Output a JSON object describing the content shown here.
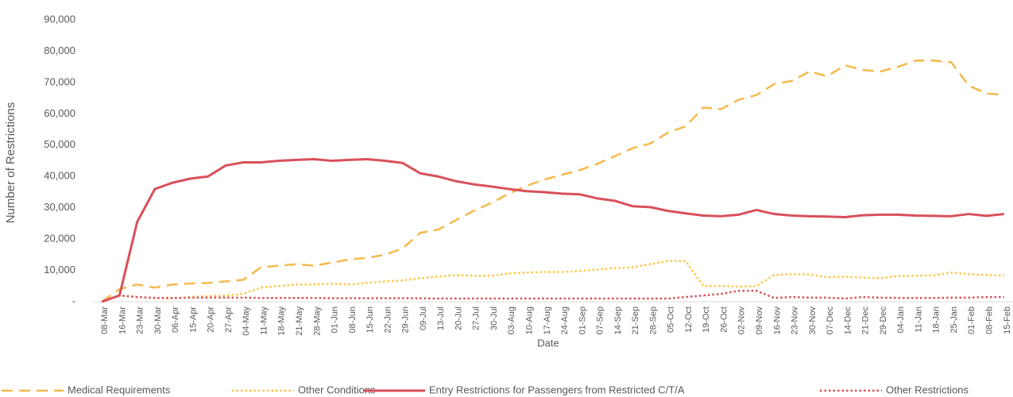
{
  "chart_data": {
    "type": "line",
    "x_label": "Date",
    "y_label": "Number of Restrictions",
    "categories": [
      "08-Mar",
      "16-Mar",
      "23-Mar",
      "30-Mar",
      "06-Apr",
      "15-Apr",
      "20-Apr",
      "27-Apr",
      "04-May",
      "11-May",
      "18-May",
      "21-May",
      "28-May",
      "01-Jun",
      "08-Jun",
      "15-Jun",
      "22-Jun",
      "29-Jun",
      "09-Jul",
      "13-Jul",
      "20-Jul",
      "27-Jul",
      "30-Jul",
      "03-Aug",
      "10-Aug",
      "17-Aug",
      "24-Aug",
      "01-Sep",
      "07-Sep",
      "14-Sep",
      "21-Sep",
      "28-Sep",
      "05-Oct",
      "12-Oct",
      "19-Oct",
      "26-Oct",
      "02-Nov",
      "09-Nov",
      "16-Nov",
      "23-Nov",
      "30-Nov",
      "07-Dec",
      "14-Dec",
      "21-Dec",
      "29-Dec",
      "04-Jan",
      "11-Jan",
      "18-Jan",
      "25-Jan",
      "01-Feb",
      "08-Feb",
      "15-Feb"
    ],
    "series": [
      {
        "name": "Medical Requirements",
        "color": "#f5b94d",
        "style": "dashed",
        "values": [
          0,
          4000,
          5500,
          4500,
          5500,
          5800,
          6000,
          6500,
          7000,
          11000,
          11500,
          12000,
          11500,
          12500,
          13500,
          14000,
          15000,
          17000,
          22000,
          23000,
          26000,
          29000,
          31500,
          34500,
          37000,
          39000,
          40500,
          42000,
          44000,
          46500,
          49000,
          50500,
          54000,
          56000,
          62000,
          61500,
          64500,
          66000,
          69500,
          70500,
          73500,
          72000,
          75500,
          74000,
          73500,
          75000,
          77000,
          77000,
          76500,
          69000,
          66500,
          66000
        ]
      },
      {
        "name": "Other Conditions",
        "color": "#ffc742",
        "style": "dotted",
        "values": [
          0,
          2000,
          1500,
          1200,
          1000,
          1500,
          1800,
          2000,
          2500,
          4500,
          5000,
          5500,
          5500,
          5800,
          5500,
          6000,
          6500,
          6800,
          7500,
          8000,
          8500,
          8300,
          8300,
          9000,
          9300,
          9500,
          9500,
          9800,
          10300,
          10700,
          11000,
          12000,
          13000,
          13000,
          5000,
          5000,
          4800,
          5000,
          8500,
          8800,
          8700,
          7800,
          8000,
          7700,
          7500,
          8200,
          8300,
          8400,
          9300,
          8800,
          8500,
          8400
        ]
      },
      {
        "name": "Entry Restrictions for Passengers from Restricted C/T/A",
        "color": "#d9505a",
        "style": "solid",
        "values": [
          0,
          2000,
          25500,
          36000,
          38000,
          39300,
          40000,
          43500,
          44500,
          44500,
          45000,
          45300,
          45500,
          45000,
          45300,
          45500,
          45000,
          44300,
          41000,
          40000,
          38500,
          37500,
          36800,
          36000,
          35300,
          35000,
          34500,
          34300,
          33000,
          32200,
          30500,
          30200,
          29000,
          28200,
          27500,
          27300,
          27800,
          29300,
          28000,
          27500,
          27300,
          27200,
          27000,
          27600,
          27800,
          27800,
          27500,
          27400,
          27300,
          28000,
          27400,
          28000
        ]
      },
      {
        "name": "Other Restrictions",
        "color": "#d9505a",
        "style": "dotted",
        "values": [
          0,
          2000,
          1500,
          1200,
          1200,
          1300,
          1300,
          1300,
          1300,
          1200,
          1200,
          1200,
          1200,
          1100,
          1100,
          1100,
          1100,
          1100,
          1100,
          1000,
          1000,
          1000,
          1000,
          1000,
          1000,
          1000,
          1000,
          1000,
          1000,
          1000,
          1000,
          1000,
          1000,
          1500,
          2000,
          2500,
          3500,
          3500,
          1200,
          1500,
          1300,
          1300,
          1000,
          1500,
          1300,
          1200,
          1200,
          1200,
          1300,
          1300,
          1500,
          1500
        ]
      }
    ],
    "ylim": [
      0,
      90000
    ],
    "yticks": [
      {
        "value": 0,
        "label": "-"
      },
      {
        "value": 10000,
        "label": "10,000"
      },
      {
        "value": 20000,
        "label": "20,000"
      },
      {
        "value": 30000,
        "label": "30,000"
      },
      {
        "value": 40000,
        "label": "40,000"
      },
      {
        "value": 50000,
        "label": "50,000"
      },
      {
        "value": 60000,
        "label": "60,000"
      },
      {
        "value": 70000,
        "label": "70,000"
      },
      {
        "value": 80000,
        "label": "80,000"
      },
      {
        "value": 90000,
        "label": "90,000"
      }
    ],
    "grid": false,
    "legend": "bottom"
  }
}
